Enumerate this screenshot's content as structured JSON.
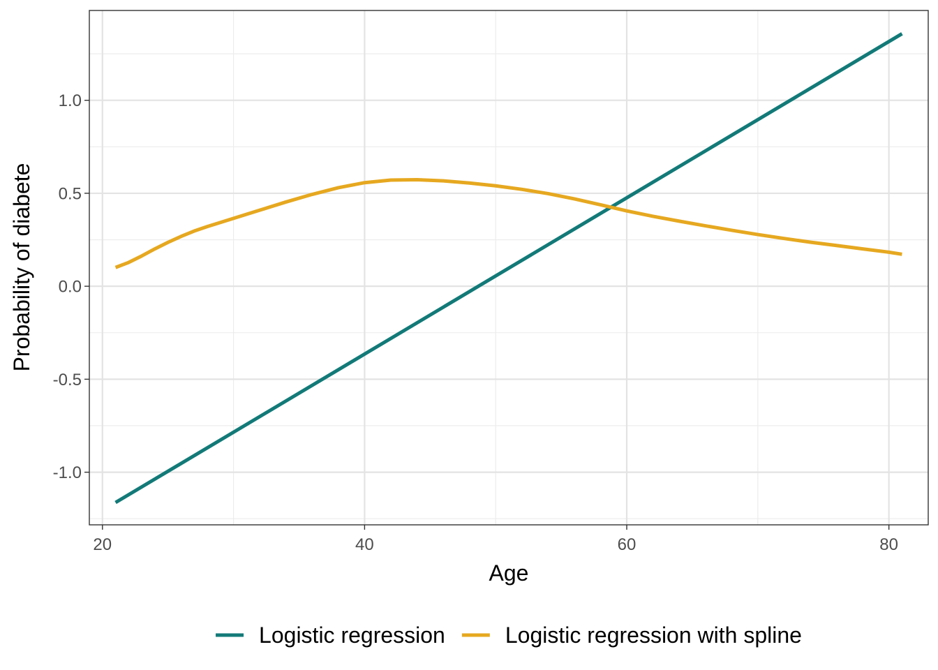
{
  "chart_data": {
    "type": "line",
    "xlabel": "Age",
    "ylabel": "Probability of diabete",
    "xlim": [
      19.0,
      83.0
    ],
    "ylim": [
      -1.283,
      1.483
    ],
    "x_ticks": [
      20,
      40,
      60,
      80
    ],
    "x_tick_labels": [
      "20",
      "40",
      "60",
      "80"
    ],
    "x_minor_ticks": [
      30,
      50,
      70
    ],
    "y_ticks": [
      -1.0,
      -0.5,
      0.0,
      0.5,
      1.0
    ],
    "y_tick_labels": [
      "-1.0",
      "-0.5",
      "0.0",
      "0.5",
      "1.0"
    ],
    "y_minor_ticks": [
      -1.25,
      -0.75,
      -0.25,
      0.25,
      0.75,
      1.25
    ],
    "grid": true,
    "legend_position": "bottom",
    "series": [
      {
        "name": "Logistic regression",
        "color": "#127A78",
        "x": [
          21,
          81
        ],
        "y": [
          -1.163,
          1.358
        ]
      },
      {
        "name": "Logistic regression with spline",
        "color": "#E6A820",
        "x": [
          21,
          22,
          23,
          24,
          25,
          26,
          27,
          28,
          29,
          30,
          32,
          34,
          36,
          38,
          40,
          42,
          44,
          46,
          48,
          50,
          52,
          54,
          56,
          58,
          60,
          62,
          64,
          66,
          68,
          70,
          72,
          74,
          76,
          78,
          80,
          81
        ],
        "y": [
          0.101,
          0.128,
          0.163,
          0.201,
          0.236,
          0.268,
          0.297,
          0.321,
          0.343,
          0.365,
          0.409,
          0.453,
          0.494,
          0.53,
          0.557,
          0.571,
          0.573,
          0.567,
          0.555,
          0.54,
          0.521,
          0.498,
          0.47,
          0.438,
          0.405,
          0.376,
          0.35,
          0.325,
          0.301,
          0.278,
          0.257,
          0.237,
          0.219,
          0.201,
          0.183,
          0.172
        ]
      }
    ]
  }
}
